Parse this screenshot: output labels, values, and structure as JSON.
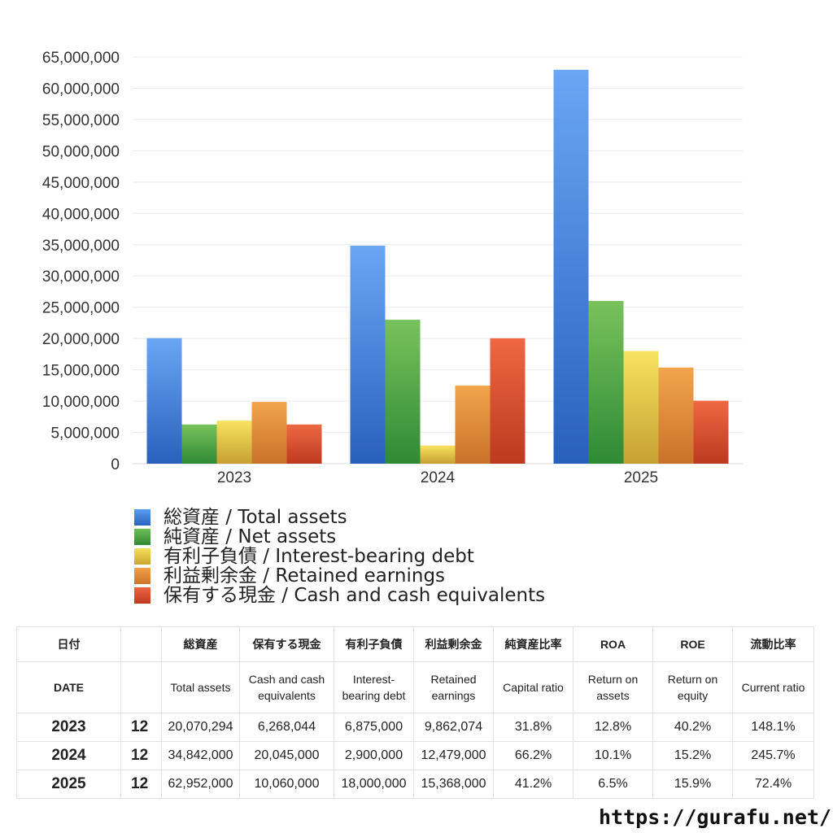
{
  "chart_data": {
    "type": "bar",
    "categories": [
      "2023",
      "2024",
      "2025"
    ],
    "series": [
      {
        "name": "総資産 / Total assets",
        "color": "#3a78d4",
        "values": [
          20070294,
          34842000,
          62952000
        ]
      },
      {
        "name": "純資産 / Net assets",
        "color": "#4a9e3c",
        "values": [
          6268044,
          23000000,
          26000000
        ]
      },
      {
        "name": "有利子負債 / Interest-bearing debt",
        "color": "#e3c23a",
        "values": [
          6875000,
          2900000,
          18000000
        ]
      },
      {
        "name": "利益剰余金 / Retained earnings",
        "color": "#e08a34",
        "values": [
          9862074,
          12479000,
          15368000
        ]
      },
      {
        "name": "保有する現金 /  Cash and cash equivalents",
        "color": "#d84a2a",
        "values": [
          6268044,
          20045000,
          10060000
        ]
      }
    ],
    "ylim": [
      0,
      65000000
    ],
    "yticks": [
      "0",
      "5,000,000",
      "10,000,000",
      "15,000,000",
      "20,000,000",
      "25,000,000",
      "30,000,000",
      "35,000,000",
      "40,000,000",
      "45,000,000",
      "50,000,000",
      "55,000,000",
      "60,000,000",
      "65,000,000"
    ],
    "grid": true,
    "legend_position": "bottom",
    "title": "",
    "xlabel": "",
    "ylabel": ""
  },
  "table": {
    "header_jp": [
      "日付",
      "",
      "総資産",
      "保有する現金",
      "有利子負債",
      "利益剰余金",
      "純資産比率",
      "ROA",
      "ROE",
      "流動比率"
    ],
    "header_en": [
      "DATE",
      "",
      "Total assets",
      "Cash and cash equivalents",
      "Interest-bearing debt",
      "Retained earnings",
      "Capital ratio",
      "Return on assets",
      "Return on equity",
      "Current ratio"
    ],
    "rows": [
      [
        "2023",
        "12",
        "20,070,294",
        "6,268,044",
        "6,875,000",
        "9,862,074",
        "31.8%",
        "12.8%",
        "40.2%",
        "148.1%"
      ],
      [
        "2024",
        "12",
        "34,842,000",
        "20,045,000",
        "2,900,000",
        "12,479,000",
        "66.2%",
        "10.1%",
        "15.2%",
        "245.7%"
      ],
      [
        "2025",
        "12",
        "62,952,000",
        "10,060,000",
        "18,000,000",
        "15,368,000",
        "41.2%",
        "6.5%",
        "15.9%",
        "72.4%"
      ]
    ]
  },
  "footer": {
    "url": "https://gurafu.net/"
  }
}
